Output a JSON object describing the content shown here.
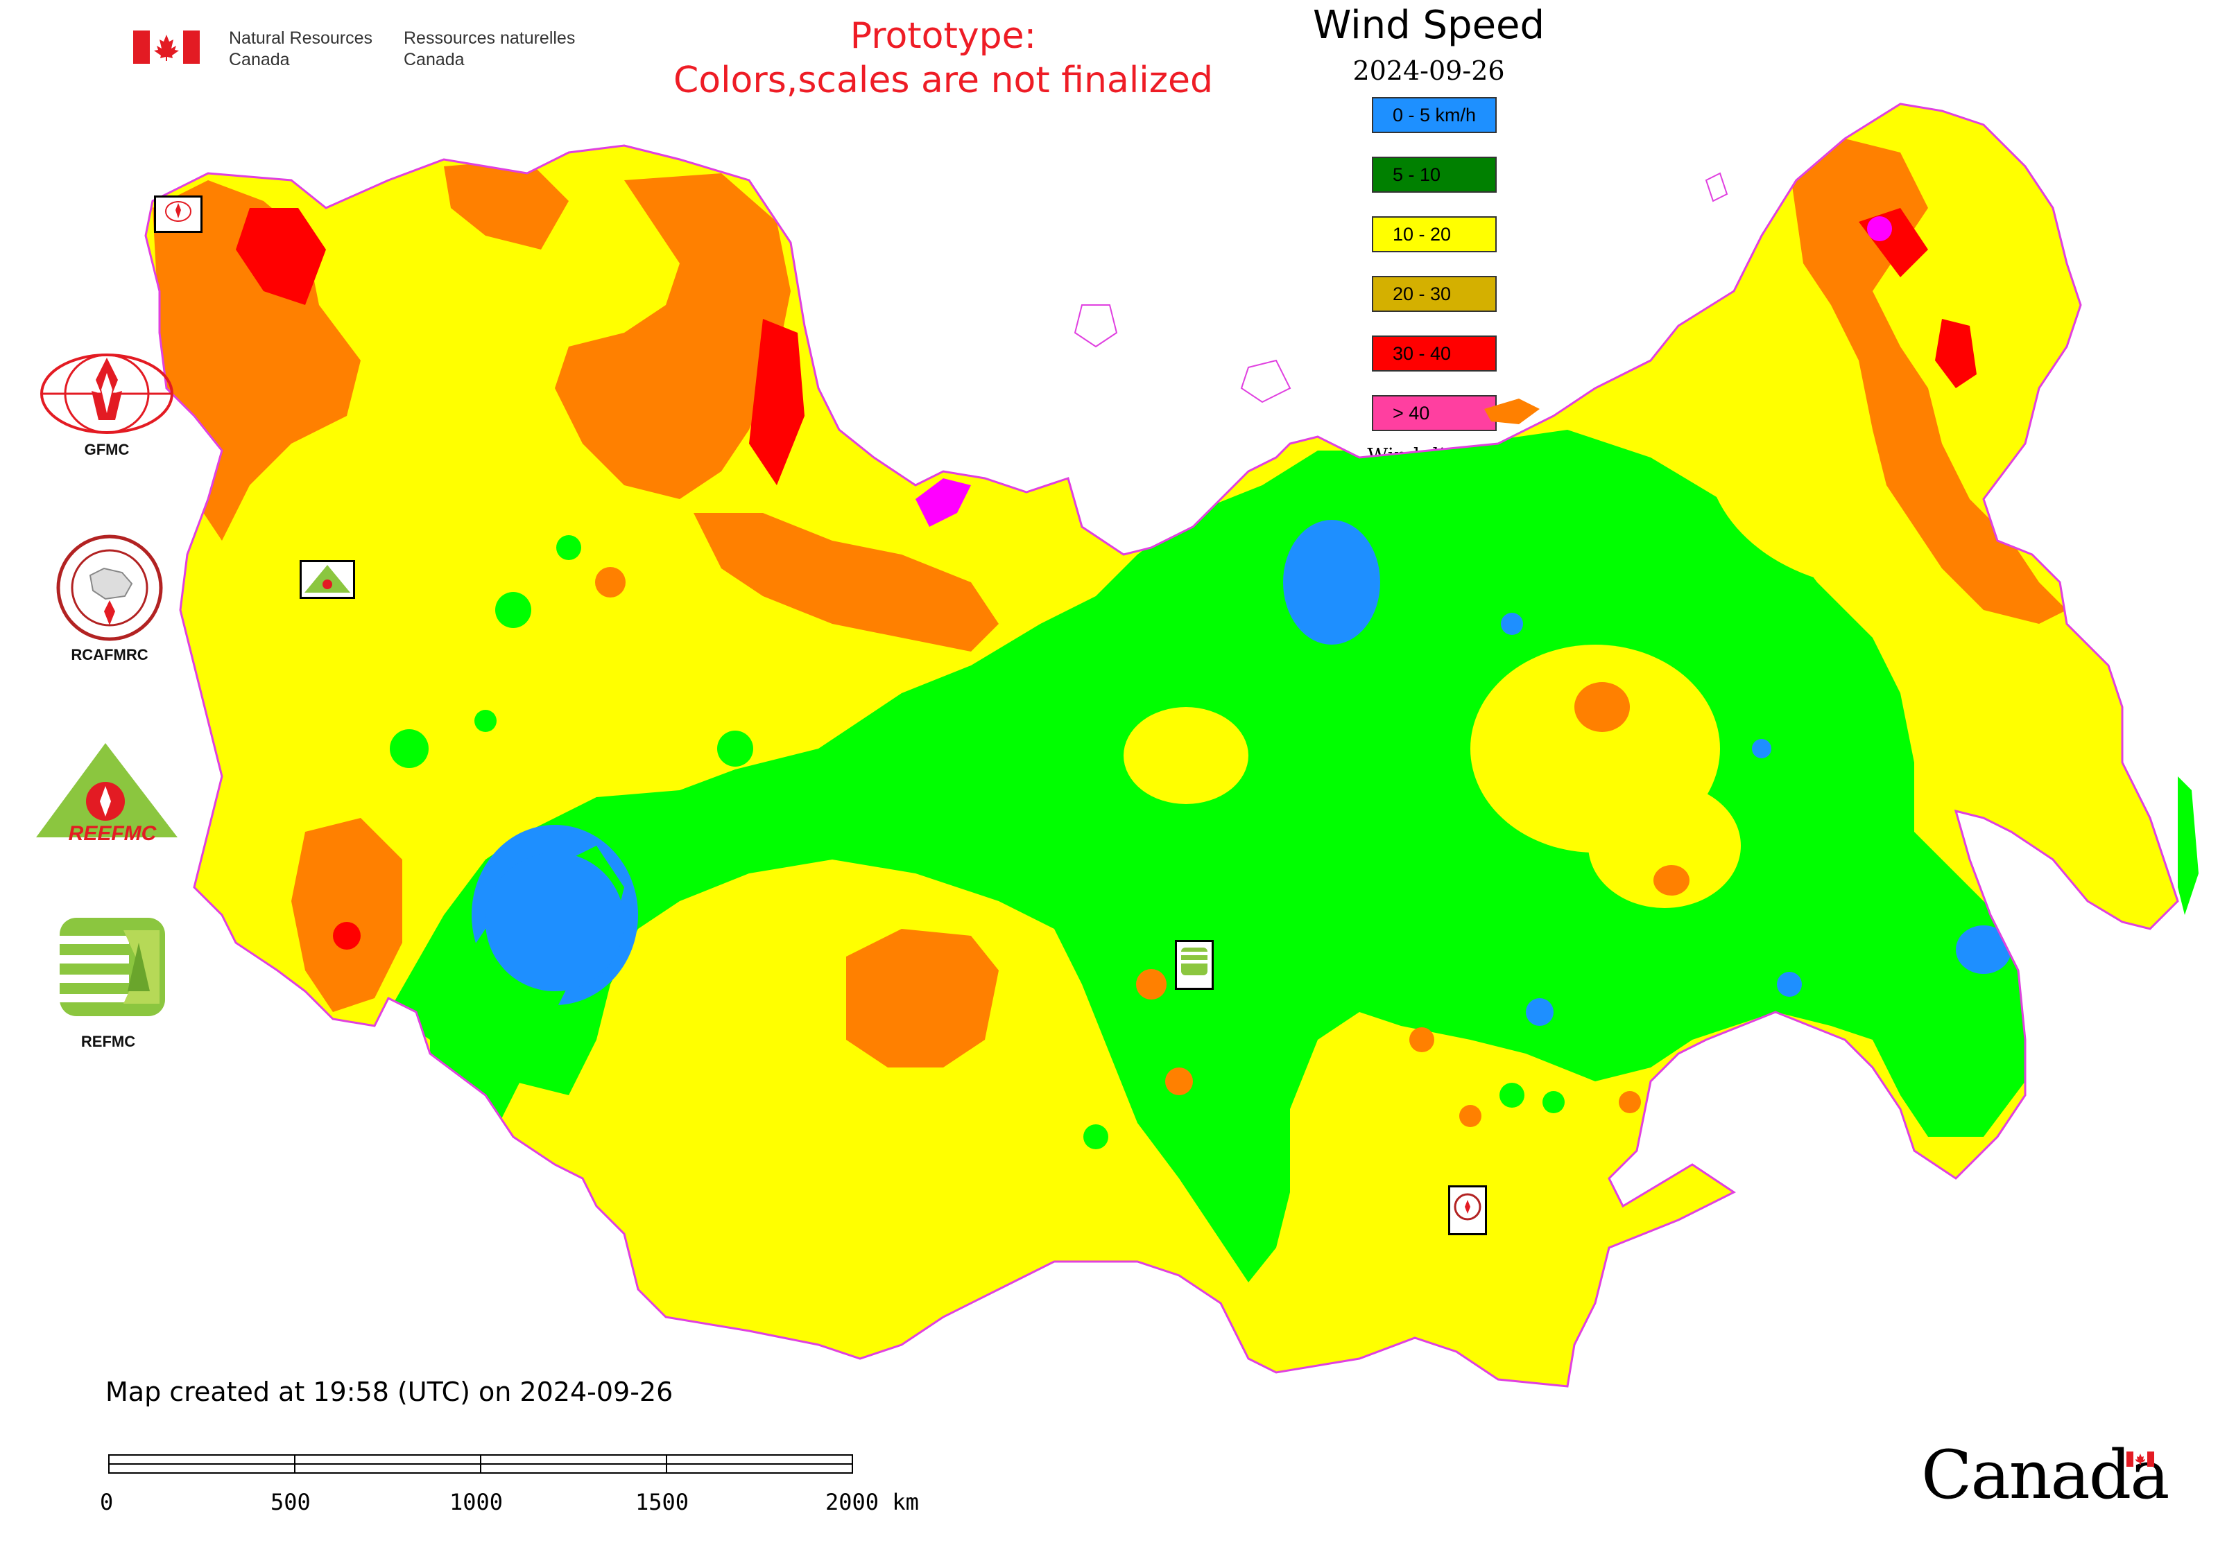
{
  "header": {
    "nrcan_en_line1": "Natural Resources",
    "nrcan_en_line2": "Canada",
    "nrcan_fr_line1": "Ressources naturelles",
    "nrcan_fr_line2": "Canada",
    "prototype_line1": "Prototype:",
    "prototype_line2": "Colors,scales are not finalized"
  },
  "legend": {
    "title": "Wind Speed",
    "date": "2024-09-26",
    "items": [
      {
        "label": "0 - 5 km/h",
        "color": "#1e90ff"
      },
      {
        "label": "5 - 10",
        "color": "#008000"
      },
      {
        "label": "10 - 20",
        "color": "#ffff00"
      },
      {
        "label": "20 - 30",
        "color": "#d4b000"
      },
      {
        "label": "30 - 40",
        "color": "#ff0000"
      },
      {
        "label": "> 40",
        "color": "#ff3fa0"
      }
    ],
    "wind_direction_label": "Wind direction"
  },
  "map_colors": {
    "calm": "#1e8fff",
    "light": "#00ff00",
    "moderate": "#ffff00",
    "fresh": "#ff8000",
    "strong": "#ff0000",
    "gale": "#ff00ff",
    "border": "#e040e0"
  },
  "logos": {
    "gfmc_label": "GFMC",
    "rcafmrc_label": "RCAFMRC",
    "reefmc_label": "REEFMC",
    "refmc_label": "REFMC",
    "gfmc_marker": "GFMC",
    "reefmc_marker": "REEFMC",
    "refmc_marker": "REFMC",
    "rcafmrc_marker": "RCAFMRC"
  },
  "footer": {
    "created_text": "Map created at 19:58 (UTC) on 2024-09-26",
    "scale_ticks": [
      "0",
      "500",
      "1000",
      "1500",
      "2000 km"
    ],
    "canada_wordmark": "Canada"
  }
}
